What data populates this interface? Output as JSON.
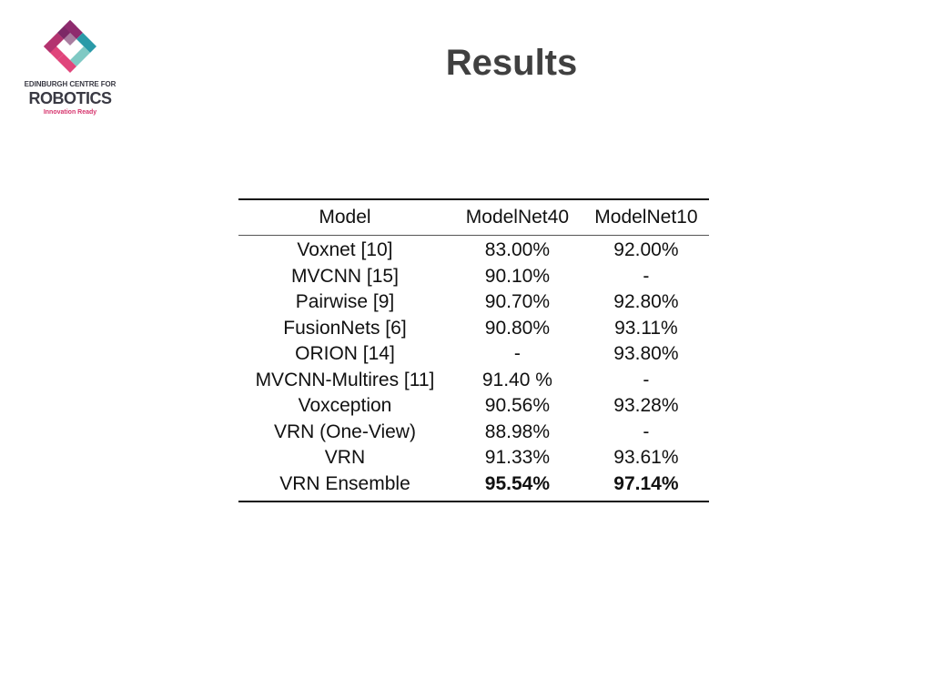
{
  "logo": {
    "line1": "EDINBURGH CENTRE FOR",
    "line2": "ROBOTICS",
    "line3": "Innovation Ready",
    "colors": {
      "magenta": "#8e2b6e",
      "pink": "#e0457b",
      "teal": "#2a9aa8",
      "light_teal": "#7fc9c4",
      "text": "#3a3a44"
    }
  },
  "slide": {
    "title": "Results"
  },
  "table": {
    "headers": [
      "Model",
      "ModelNet40",
      "ModelNet10"
    ],
    "rows": [
      {
        "model": "Voxnet [10]",
        "modelnet40": "83.00%",
        "modelnet10": "92.00%"
      },
      {
        "model": "MVCNN [15]",
        "modelnet40": "90.10%",
        "modelnet10": "-"
      },
      {
        "model": "Pairwise [9]",
        "modelnet40": "90.70%",
        "modelnet10": "92.80%"
      },
      {
        "model": "FusionNets [6]",
        "modelnet40": "90.80%",
        "modelnet10": "93.11%"
      },
      {
        "model": "ORION [14]",
        "modelnet40": "-",
        "modelnet10": "93.80%"
      },
      {
        "model": "MVCNN-Multires [11]",
        "modelnet40": "91.40 %",
        "modelnet10": "-"
      },
      {
        "model": "Voxception",
        "modelnet40": "90.56%",
        "modelnet10": "93.28%"
      },
      {
        "model": "VRN (One-View)",
        "modelnet40": "88.98%",
        "modelnet10": "-"
      },
      {
        "model": "VRN",
        "modelnet40": "91.33%",
        "modelnet10": "93.61%"
      },
      {
        "model": "VRN Ensemble",
        "modelnet40": "95.54%",
        "modelnet10": "97.14%"
      }
    ]
  }
}
